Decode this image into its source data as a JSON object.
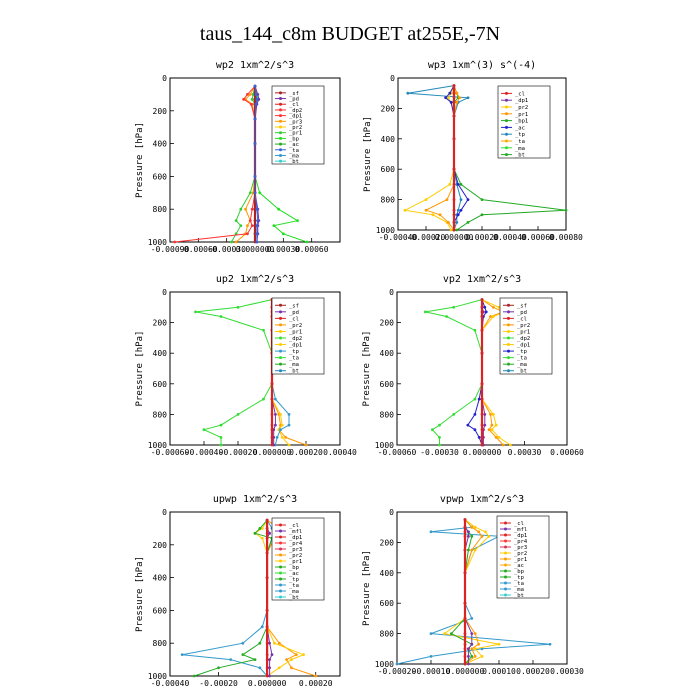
{
  "figure_title": "taus_144_c8m  BUDGET at255E,-7N",
  "chart_data": [
    {
      "type": "line",
      "title": "wp2   1xm^2/s^3",
      "ylabel": "Pressure [hPa]",
      "ylim": [
        1000,
        0
      ],
      "yticks": [
        "0",
        "200",
        "400",
        "600",
        "800",
        "1000"
      ],
      "xlim": [
        -0.0009,
        0.0009
      ],
      "xticks": [
        "-0.00090",
        "-0.00060",
        "-0.00030",
        "0.000000",
        "0.00030",
        "0.00060"
      ],
      "tickvals": [
        -0.0009,
        -0.0006,
        -0.0003,
        0.0,
        0.0003,
        0.0006
      ],
      "legend_position": "top-right",
      "legend": [
        "_sf",
        "_pd",
        "_cl",
        "_dp2",
        "_dp1",
        "_pr3",
        "_pr2",
        "_pr1",
        "_bp",
        "_ac",
        "_ta",
        "_ma",
        "_bt"
      ],
      "p": [
        50,
        100,
        130,
        160,
        250,
        400,
        600,
        700,
        800,
        870,
        900,
        950,
        1000
      ],
      "series": [
        {
          "name": "_bp",
          "color": "#22dd22",
          "values": [
            0.0,
            2e-05,
            3e-05,
            1e-05,
            0.0,
            0.0,
            0.0,
            5e-05,
            0.00025,
            0.00045,
            0.0002,
            0.0003,
            0.00055
          ]
        },
        {
          "name": "_pr1",
          "color": "#33cc33",
          "values": [
            0.0,
            -2e-05,
            -3e-05,
            0.0,
            0.0,
            0.0,
            0.0,
            -5e-05,
            -0.00015,
            -0.0002,
            -0.00015,
            -0.0002,
            -0.00025
          ]
        },
        {
          "name": "_pr3",
          "color": "#ff9900",
          "values": [
            0.0,
            -5e-05,
            -0.0001,
            -3e-05,
            0.0,
            0.0,
            0.0,
            -2e-05,
            -0.0001,
            -5e-05,
            -8e-05,
            -0.0001,
            -0.0002
          ]
        },
        {
          "name": "_dp1",
          "color": "#ff3333",
          "values": [
            0.0,
            -8e-05,
            -0.00012,
            -4e-05,
            0.0,
            0.0,
            0.0,
            0.0,
            -3e-05,
            -5e-05,
            -3e-05,
            -8e-05,
            -0.00085
          ]
        },
        {
          "name": "_pd",
          "color": "#7733aa",
          "values": [
            0.0,
            3e-05,
            4e-05,
            2e-05,
            0.0,
            0.0,
            0.0,
            0.0,
            3e-05,
            4e-05,
            3e-05,
            3e-05,
            2e-05
          ]
        },
        {
          "name": "_sf",
          "color": "#aa2222",
          "values": [
            0.0,
            0.0,
            0.0,
            0.0,
            0.0,
            0.0,
            0.0,
            0.0,
            0.0,
            0.0,
            0.0,
            0.0,
            0.0
          ]
        },
        {
          "name": "_ta",
          "color": "#3366dd",
          "values": [
            0.0,
            1e-05,
            2e-05,
            1e-05,
            0.0,
            0.0,
            0.0,
            0.0,
            2e-05,
            3e-05,
            2e-05,
            2e-05,
            2e-05
          ]
        }
      ]
    },
    {
      "type": "line",
      "title": "wp3   1xm^(3) s^(-4)",
      "ylabel": "Pressure [hPa]",
      "ylim": [
        1000,
        0
      ],
      "yticks": [
        "0",
        "200",
        "400",
        "600",
        "800",
        "1000"
      ],
      "xlim": [
        -0.0004,
        0.0008
      ],
      "xticks": [
        "-0.00040",
        "-0.00020",
        "0.000000",
        "0.00020",
        "0.00040",
        "0.00060",
        "0.00080"
      ],
      "tickvals": [
        -0.0004,
        -0.0002,
        0.0,
        0.0002,
        0.0004,
        0.0006,
        0.0008
      ],
      "legend_position": "top-right",
      "legend": [
        "_cl",
        "_dp1",
        "_pr2",
        "_pr1",
        "_bp1",
        "_ac",
        "_tp",
        "_ta",
        "_ma",
        "_bt"
      ],
      "p": [
        50,
        100,
        130,
        160,
        250,
        400,
        600,
        700,
        800,
        870,
        900,
        950,
        1000
      ],
      "series": [
        {
          "name": "_tp",
          "color": "#2288bb",
          "values": [
            0.0,
            -0.00033,
            0.0001,
            3e-05,
            0.0,
            0.0,
            0.0,
            2e-05,
            5e-05,
            3e-05,
            2e-05,
            2e-05,
            0.0
          ]
        },
        {
          "name": "_bp1",
          "color": "#22aa22",
          "values": [
            0.0,
            2e-05,
            3e-05,
            0.0,
            0.0,
            0.0,
            0.0,
            5e-05,
            0.0002,
            0.0008,
            0.0002,
            0.0001,
            2e-05
          ]
        },
        {
          "name": "_pr2",
          "color": "#ffcc00",
          "values": [
            0.0,
            -2e-05,
            -4e-05,
            -2e-05,
            0.0,
            0.0,
            0.0,
            -3e-05,
            -0.0002,
            -0.00035,
            -0.00015,
            -5e-05,
            -2e-05
          ]
        },
        {
          "name": "_pr1",
          "color": "#ff9900",
          "values": [
            0.0,
            2e-05,
            4e-05,
            2e-05,
            0.0,
            0.0,
            0.0,
            0.0,
            -5e-05,
            -0.0002,
            -0.0001,
            -4e-05,
            0.0
          ]
        },
        {
          "name": "_ac",
          "color": "#2222cc",
          "values": [
            0.0,
            -3e-05,
            -6e-05,
            -2e-05,
            0.0,
            0.0,
            0.0,
            3e-05,
            0.0001,
            5e-05,
            3e-05,
            0.0,
            0.0
          ]
        },
        {
          "name": "_cl",
          "color": "#dd2222",
          "values": [
            0.0,
            0.0,
            0.0,
            0.0,
            0.0,
            0.0,
            0.0,
            0.0,
            0.0,
            0.0,
            0.0,
            0.0,
            0.0
          ]
        }
      ]
    },
    {
      "type": "line",
      "title": "up2   1xm^2/s^3",
      "ylabel": "Pressure [hPa]",
      "ylim": [
        1000,
        0
      ],
      "yticks": [
        "0",
        "200",
        "400",
        "600",
        "800",
        "1000"
      ],
      "xlim": [
        -0.0006,
        0.0004
      ],
      "xticks": [
        "-0.00060",
        "-0.00040",
        "-0.00020",
        "0.000000",
        "0.00020",
        "0.00040"
      ],
      "tickvals": [
        -0.0006,
        -0.0004,
        -0.0002,
        0.0,
        0.0002,
        0.0004
      ],
      "legend_position": "top-right",
      "legend": [
        "_sf",
        "_pd",
        "_cl",
        "_pr2",
        "_pr1",
        "_dp2",
        "_dp1",
        "_tp",
        "_ta",
        "_ma",
        "_bt"
      ],
      "p": [
        50,
        100,
        130,
        160,
        250,
        400,
        600,
        700,
        800,
        870,
        900,
        950,
        1000
      ],
      "series": [
        {
          "name": "_dp2",
          "color": "#33dd33",
          "values": [
            0.0,
            -0.0002,
            -0.00045,
            -0.0003,
            -5e-05,
            0.0,
            0.0,
            -5e-05,
            -0.0002,
            -0.0003,
            -0.0004,
            -0.0003,
            -0.0003
          ]
        },
        {
          "name": "_pr2",
          "color": "#ff9900",
          "values": [
            0.0,
            5e-05,
            8e-05,
            5e-05,
            0.0,
            0.0,
            0.0,
            0.0,
            4e-05,
            5e-05,
            4e-05,
            8e-05,
            0.0002
          ]
        },
        {
          "name": "_pr1",
          "color": "#ffcc00",
          "values": [
            0.0,
            8e-05,
            0.0001,
            6e-05,
            0.0,
            0.0,
            0.0,
            0.0,
            5e-05,
            6e-05,
            4e-05,
            6e-05,
            0.0001
          ]
        },
        {
          "name": "_tp",
          "color": "#3399cc",
          "values": [
            0.0,
            2e-05,
            2e-05,
            1e-05,
            0.0,
            0.0,
            0.0,
            2e-05,
            0.0001,
            0.0001,
            5e-05,
            3e-05,
            2e-05
          ]
        },
        {
          "name": "_pd",
          "color": "#7733aa",
          "values": [
            0.0,
            0.0,
            1e-05,
            0.0,
            0.0,
            0.0,
            0.0,
            0.0,
            2e-05,
            2e-05,
            1e-05,
            1e-05,
            1e-05
          ]
        },
        {
          "name": "_cl",
          "color": "#dd2222",
          "values": [
            0.0,
            0.0,
            0.0,
            0.0,
            0.0,
            0.0,
            0.0,
            0.0,
            0.0,
            0.0,
            0.0,
            0.0,
            0.0
          ]
        }
      ]
    },
    {
      "type": "line",
      "title": "vp2   1xm^2/s^3",
      "ylabel": "Pressure [hPa]",
      "ylim": [
        1000,
        0
      ],
      "yticks": [
        "0",
        "200",
        "400",
        "600",
        "800",
        "1000"
      ],
      "xlim": [
        -0.0006,
        0.0006
      ],
      "xticks": [
        "-0.00060",
        "-0.00030",
        "0.000000",
        "0.00030",
        "0.00060"
      ],
      "tickvals": [
        -0.0006,
        -0.0003,
        0.0,
        0.0003,
        0.0006
      ],
      "legend_position": "top-right",
      "legend": [
        "_sf",
        "_pd",
        "_cl",
        "_pr2",
        "_pr1",
        "_dp2",
        "_dp1",
        "_tp",
        "_ta",
        "_ma",
        "_bt"
      ],
      "p": [
        50,
        100,
        130,
        160,
        250,
        400,
        600,
        700,
        800,
        870,
        900,
        950,
        1000
      ],
      "series": [
        {
          "name": "_dp2",
          "color": "#33dd33",
          "values": [
            0.0,
            -0.0002,
            -0.0004,
            -0.00025,
            -5e-05,
            0.0,
            0.0,
            -5e-05,
            -0.0002,
            -0.0003,
            -0.00035,
            -0.0003,
            -0.0003
          ]
        },
        {
          "name": "_pr2",
          "color": "#ff9900",
          "values": [
            0.0,
            8e-05,
            0.00015,
            6e-05,
            0.0,
            0.0,
            0.0,
            0.0,
            6e-05,
            7e-05,
            5e-05,
            0.0001,
            0.00015
          ]
        },
        {
          "name": "_pr1",
          "color": "#ffcc00",
          "values": [
            0.0,
            0.00012,
            0.00016,
            8e-05,
            0.0,
            0.0,
            0.0,
            0.0,
            8e-05,
            0.0001,
            7e-05,
            0.00012,
            0.0002
          ]
        },
        {
          "name": "_tp",
          "color": "#2222cc",
          "values": [
            0.0,
            2e-05,
            3e-05,
            1e-05,
            0.0,
            0.0,
            0.0,
            -2e-05,
            -5e-05,
            -0.0001,
            -5e-05,
            -2e-05,
            0.0
          ]
        },
        {
          "name": "_pd",
          "color": "#7733aa",
          "values": [
            0.0,
            0.0,
            1e-05,
            0.0,
            0.0,
            0.0,
            0.0,
            0.0,
            2e-05,
            2e-05,
            1e-05,
            1e-05,
            1e-05
          ]
        },
        {
          "name": "_cl",
          "color": "#dd2222",
          "values": [
            0.0,
            0.0,
            0.0,
            0.0,
            0.0,
            0.0,
            0.0,
            0.0,
            0.0,
            0.0,
            0.0,
            0.0,
            0.0
          ]
        }
      ]
    },
    {
      "type": "line",
      "title": "upwp   1xm^2/s^3",
      "ylabel": "Pressure [hPa]",
      "ylim": [
        1000,
        0
      ],
      "yticks": [
        "0",
        "200",
        "400",
        "600",
        "800",
        "1000"
      ],
      "xlim": [
        -0.0004,
        0.0003
      ],
      "xticks": [
        "-0.00040",
        "-0.00020",
        "0.000000",
        "0.00020"
      ],
      "tickvals": [
        -0.0004,
        -0.0002,
        0.0,
        0.0002
      ],
      "legend_position": "top-right",
      "legend": [
        "_cl",
        "_mfl",
        "_dp1",
        "_pr4",
        "_pr3",
        "_pr2",
        "_pr1",
        "_bp",
        "_ac",
        "_tp",
        "_ta",
        "_ma",
        "_bt"
      ],
      "p": [
        50,
        100,
        130,
        160,
        250,
        400,
        600,
        700,
        800,
        870,
        900,
        950,
        1000
      ],
      "series": [
        {
          "name": "_ta",
          "color": "#3399cc",
          "values": [
            0.0,
            2e-05,
            4e-05,
            2e-05,
            0.0,
            0.0,
            0.0,
            -2e-05,
            -0.0001,
            -0.00035,
            -0.00015,
            -3e-05,
            0.0
          ]
        },
        {
          "name": "_pr2",
          "color": "#ff9900",
          "values": [
            0.0,
            5e-05,
            8e-05,
            3e-05,
            0.0,
            0.0,
            0.0,
            0.0,
            5e-05,
            0.00012,
            8e-05,
            0.0001,
            0.0002
          ]
        },
        {
          "name": "_pr1",
          "color": "#ffcc00",
          "values": [
            0.0,
            -2e-05,
            -5e-05,
            -2e-05,
            0.0,
            0.0,
            0.0,
            0.0,
            3e-05,
            0.00015,
            0.0001,
            5e-05,
            0.0
          ]
        },
        {
          "name": "_bp",
          "color": "#22aa22",
          "values": [
            0.0,
            -3e-05,
            -5e-05,
            2e-05,
            0.0,
            0.0,
            0.0,
            0.0,
            -3e-05,
            -0.0001,
            -5e-05,
            -0.0002,
            -0.0003
          ]
        },
        {
          "name": "_mfl",
          "color": "#7733aa",
          "values": [
            0.0,
            0.0,
            1e-05,
            0.0,
            0.0,
            0.0,
            0.0,
            0.0,
            1e-05,
            2e-05,
            1e-05,
            1e-05,
            1e-05
          ]
        },
        {
          "name": "_cl",
          "color": "#dd2222",
          "values": [
            0.0,
            0.0,
            0.0,
            0.0,
            0.0,
            0.0,
            0.0,
            0.0,
            0.0,
            0.0,
            0.0,
            0.0,
            0.0
          ]
        }
      ]
    },
    {
      "type": "line",
      "title": "vpwp   1xm^2/s^3",
      "ylabel": "Pressure [hPa]",
      "ylim": [
        1000,
        0
      ],
      "yticks": [
        "0",
        "200",
        "400",
        "600",
        "800",
        "1000"
      ],
      "xlim": [
        -0.0002,
        0.0003
      ],
      "xticks": [
        "-0.00020",
        "-0.00010",
        "0.000000",
        "0.00010",
        "0.00020",
        "0.00030"
      ],
      "tickvals": [
        -0.0002,
        -0.0001,
        0.0,
        0.0001,
        0.0002,
        0.0003
      ],
      "legend_position": "top-right",
      "legend": [
        "_cl",
        "_mfl",
        "_dp1",
        "_pr4",
        "_pr3",
        "_pr2",
        "_pr1",
        "_ac",
        "_bp",
        "_tp",
        "_ta",
        "_ma",
        "_bt"
      ],
      "p": [
        50,
        100,
        130,
        160,
        250,
        400,
        600,
        700,
        800,
        870,
        900,
        950,
        1000
      ],
      "series": [
        {
          "name": "_ta",
          "color": "#3399cc",
          "values": [
            0.0,
            2e-05,
            -0.0001,
            0.0001,
            2e-05,
            0.0,
            0.0,
            2e-05,
            -0.0001,
            0.00025,
            5e-05,
            -0.0001,
            -0.0002
          ]
        },
        {
          "name": "_pr2",
          "color": "#ffcc00",
          "values": [
            0.0,
            3e-05,
            6e-05,
            7e-05,
            3e-05,
            0.0,
            0.0,
            0.0,
            -6e-05,
            0.0001,
            3e-05,
            5e-05,
            0.0
          ]
        },
        {
          "name": "_pr1",
          "color": "#ff9900",
          "values": [
            0.0,
            2e-05,
            4e-05,
            5e-05,
            2e-05,
            0.0,
            0.0,
            0.0,
            3e-05,
            4e-05,
            2e-05,
            3e-05,
            0.0
          ]
        },
        {
          "name": "_bp",
          "color": "#22aa22",
          "values": [
            0.0,
            0.0,
            1e-05,
            2e-05,
            1e-05,
            0.0,
            0.0,
            0.0,
            -4e-05,
            2e-05,
            1e-05,
            2e-05,
            0.0
          ]
        },
        {
          "name": "_mfl",
          "color": "#7733aa",
          "values": [
            0.0,
            0.0,
            1e-05,
            1e-05,
            0.0,
            0.0,
            0.0,
            0.0,
            2e-05,
            2e-05,
            1e-05,
            1e-05,
            1e-05
          ]
        },
        {
          "name": "_cl",
          "color": "#dd2222",
          "values": [
            0.0,
            0.0,
            0.0,
            0.0,
            0.0,
            0.0,
            0.0,
            0.0,
            0.0,
            0.0,
            0.0,
            0.0,
            0.0
          ]
        }
      ]
    }
  ]
}
